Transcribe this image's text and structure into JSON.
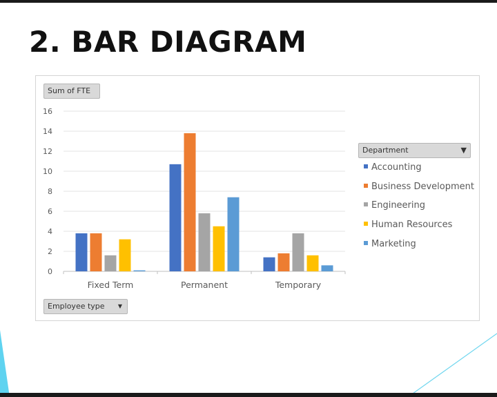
{
  "slide": {
    "title": "2. BAR DIAGRAM",
    "colors": {
      "bar_top": "#1a1a1a",
      "accent_cyan": "#5fd3f0"
    }
  },
  "pivot": {
    "value_field_label": "Sum of FTE",
    "axis_field_label": "Employee type",
    "legend_field_label": "Department",
    "axis_dropdown_icon": "dropdown-arrow-icon",
    "legend_filter_icon": "filter-icon"
  },
  "chart_data": {
    "type": "bar",
    "title": "",
    "xlabel": "",
    "ylabel": "",
    "categories": [
      "Fixed Term",
      "Permanent",
      "Temporary"
    ],
    "ylim": [
      0,
      16
    ],
    "yticks": [
      0,
      2,
      4,
      6,
      8,
      10,
      12,
      14,
      16
    ],
    "grid": true,
    "legend_position": "right",
    "series": [
      {
        "name": "Accounting",
        "color": "#4472c4",
        "values": [
          3.8,
          10.7,
          1.4
        ]
      },
      {
        "name": "Business Development",
        "color": "#ed7d31",
        "values": [
          3.8,
          13.8,
          1.8
        ]
      },
      {
        "name": "Engineering",
        "color": "#a5a5a5",
        "values": [
          1.6,
          5.8,
          3.8
        ]
      },
      {
        "name": "Human Resources",
        "color": "#ffc000",
        "values": [
          3.2,
          4.5,
          1.6
        ]
      },
      {
        "name": "Marketing",
        "color": "#5b9bd5",
        "values": [
          0.1,
          7.4,
          0.6
        ]
      }
    ]
  }
}
